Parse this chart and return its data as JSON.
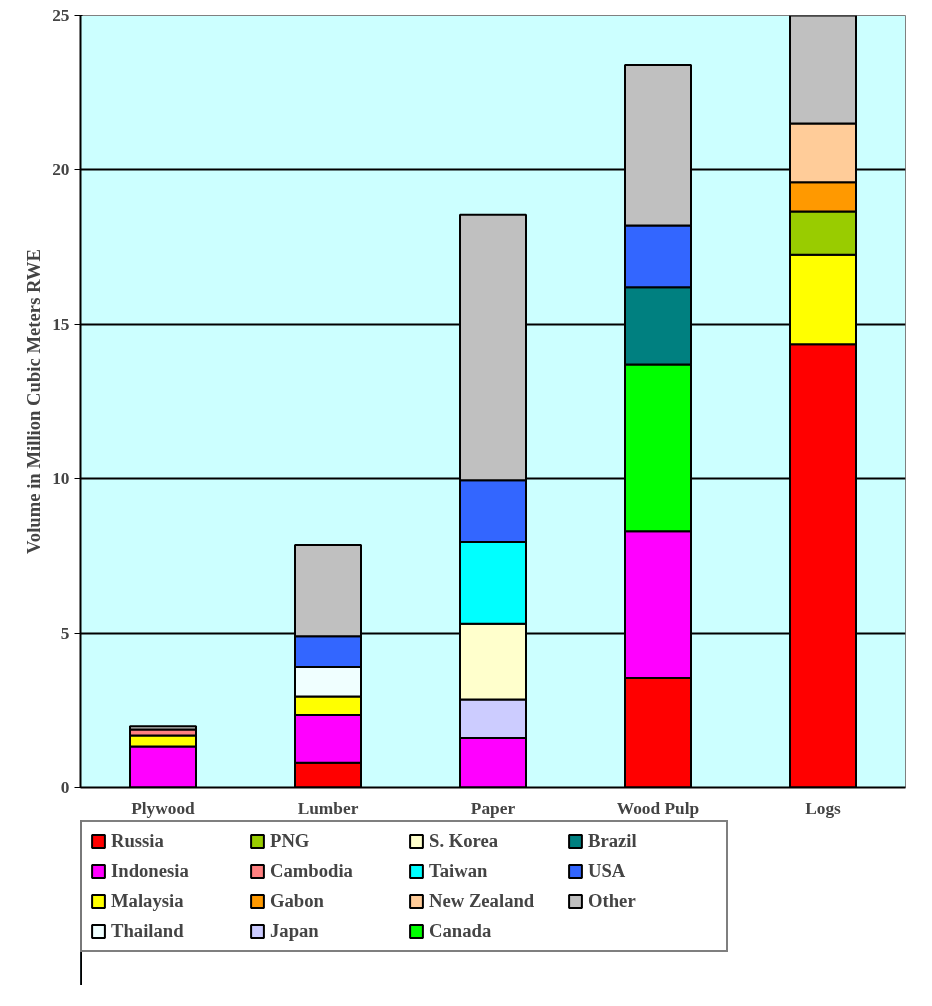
{
  "chart_data": {
    "type": "bar",
    "stacked": true,
    "ylabel": "Volume in Million Cubic Meters RWE",
    "categories": [
      "Plywood",
      "Lumber",
      "Paper",
      "Wood Pulp",
      "Logs"
    ],
    "ylim": [
      0,
      25
    ],
    "yticks": [
      0,
      5,
      10,
      15,
      20,
      25
    ],
    "grid": "y",
    "legend": "bottom",
    "series": [
      {
        "name": "Russia",
        "color": "#ff0000",
        "values": [
          null,
          0.8,
          null,
          3.55,
          14.35
        ]
      },
      {
        "name": "Indonesia",
        "color": "#ff00ff",
        "values": [
          1.33,
          1.55,
          1.6,
          4.75,
          null
        ]
      },
      {
        "name": "Malaysia",
        "color": "#ffff00",
        "values": [
          0.35,
          0.6,
          null,
          null,
          2.9
        ]
      },
      {
        "name": "Thailand",
        "color": "#f0ffff",
        "values": [
          null,
          0.95,
          null,
          null,
          null
        ]
      },
      {
        "name": "PNG",
        "color": "#99cc00",
        "values": [
          null,
          null,
          null,
          null,
          1.4
        ]
      },
      {
        "name": "Cambodia",
        "color": "#ff8080",
        "values": [
          0.2,
          null,
          null,
          null,
          null
        ]
      },
      {
        "name": "Gabon",
        "color": "#ff9900",
        "values": [
          null,
          null,
          null,
          null,
          0.95
        ]
      },
      {
        "name": "Japan",
        "color": "#ccccff",
        "values": [
          null,
          null,
          1.25,
          null,
          null
        ]
      },
      {
        "name": "S. Korea",
        "color": "#ffffcc",
        "values": [
          null,
          null,
          2.45,
          null,
          null
        ]
      },
      {
        "name": "Taiwan",
        "color": "#00ffff",
        "values": [
          null,
          null,
          2.65,
          null,
          null
        ]
      },
      {
        "name": "New Zealand",
        "color": "#ffcc99",
        "values": [
          null,
          null,
          null,
          null,
          1.9
        ]
      },
      {
        "name": "Canada",
        "color": "#00ff00",
        "values": [
          null,
          null,
          null,
          5.4,
          null
        ]
      },
      {
        "name": "Brazil",
        "color": "#008080",
        "values": [
          null,
          null,
          null,
          2.5,
          null
        ]
      },
      {
        "name": "USA",
        "color": "#3366ff",
        "values": [
          null,
          1.0,
          2.0,
          2.0,
          null
        ]
      },
      {
        "name": "Other",
        "color": "#c0c0c0",
        "values": [
          0.1,
          2.95,
          8.6,
          5.2,
          3.5
        ]
      }
    ]
  }
}
